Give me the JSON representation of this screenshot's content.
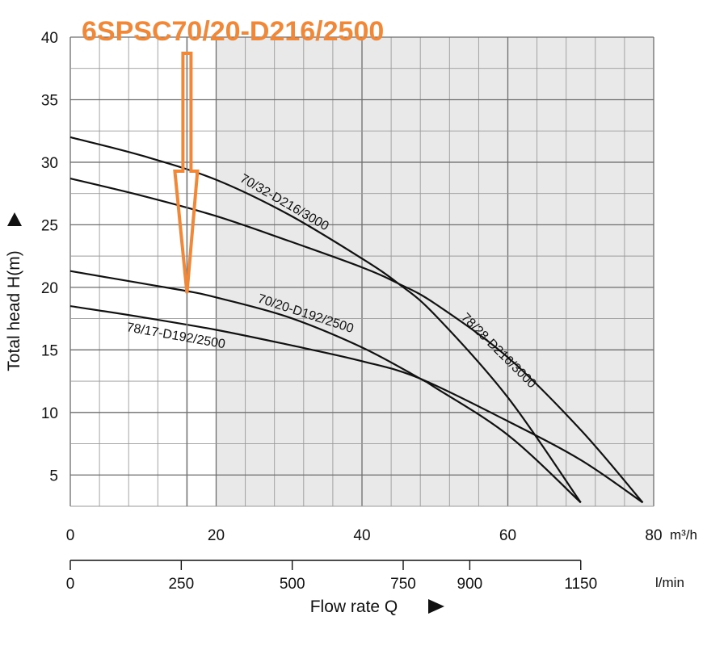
{
  "banner": {
    "text": "6SPSC70/20-D216/2500",
    "color": "#f0883a"
  },
  "chart_data": {
    "type": "line",
    "title": "",
    "xlabel": "Flow rate Q",
    "ylabel": "Total head H(m)",
    "x_unit": "m³/h",
    "x2_unit": "l/min",
    "xlim": [
      0,
      80
    ],
    "ylim": [
      2.5,
      40
    ],
    "x_ticks": [
      0,
      20,
      40,
      60,
      80
    ],
    "x_tick_labels": [
      "0",
      "20",
      "40",
      "60",
      "80"
    ],
    "x2_ticks": [
      0,
      250,
      500,
      750,
      900,
      1150
    ],
    "x2_tick_labels": [
      "0",
      "250",
      "500",
      "750",
      "900",
      "1150"
    ],
    "y_ticks": [
      5,
      10,
      15,
      20,
      25,
      30,
      35,
      40
    ],
    "y_tick_labels": [
      "5",
      "10",
      "15",
      "20",
      "25",
      "30",
      "35",
      "40"
    ],
    "grid": true,
    "shaded_regions": [
      [
        20,
        60
      ],
      [
        60,
        80
      ]
    ],
    "shade_color": "#e9e9e9",
    "marker_x": 16,
    "series": [
      {
        "name": "70/32-D216/3000",
        "x": [
          0,
          10,
          20,
          30,
          40,
          45,
          50,
          60,
          70
        ],
        "y": [
          32,
          30.5,
          28.6,
          25.8,
          22.3,
          20.3,
          17.8,
          11.2,
          2.8
        ]
      },
      {
        "name": "78/28-D216/3000",
        "x": [
          0,
          10,
          20,
          30,
          40,
          45,
          50,
          60,
          70,
          78.5
        ],
        "y": [
          28.7,
          27.3,
          25.7,
          23.7,
          21.6,
          20.3,
          18.7,
          14.4,
          8.6,
          2.8
        ]
      },
      {
        "name": "70/20-D192/2500",
        "x": [
          0,
          10,
          16,
          20,
          30,
          40,
          48,
          50,
          60,
          70
        ],
        "y": [
          21.3,
          20.3,
          19.7,
          19.2,
          17.6,
          15.2,
          12.7,
          12.0,
          8.2,
          2.8
        ]
      },
      {
        "name": "78/17-D192/2500",
        "x": [
          0,
          10,
          20,
          30,
          40,
          48,
          60,
          70,
          78.5
        ],
        "y": [
          18.5,
          17.6,
          16.6,
          15.4,
          14.1,
          12.7,
          9.3,
          6.2,
          2.8
        ]
      }
    ]
  }
}
